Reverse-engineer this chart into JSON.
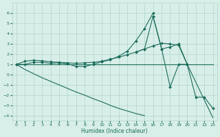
{
  "xlabel": "Humidex (Indice chaleur)",
  "color": "#1a6b5a",
  "bg_color": "#d8eee8",
  "grid_color": "#b0d4ce",
  "ylim": [
    -4.5,
    7.0
  ],
  "xlim": [
    -0.5,
    23.5
  ],
  "yticks": [
    -4,
    -3,
    -2,
    -1,
    0,
    1,
    2,
    3,
    4,
    5,
    6
  ],
  "xticks": [
    0,
    1,
    2,
    3,
    4,
    5,
    6,
    7,
    8,
    9,
    10,
    11,
    12,
    13,
    14,
    15,
    16,
    17,
    18,
    19,
    20,
    21,
    22,
    23
  ],
  "lines": [
    {
      "x": [
        0,
        1,
        2,
        3,
        4,
        5,
        6,
        7,
        8,
        9,
        10,
        11,
        12,
        13,
        14,
        15,
        16,
        17,
        18,
        19,
        20,
        21,
        22,
        23
      ],
      "y": [
        1.0,
        1.0,
        1.0,
        1.0,
        1.0,
        1.0,
        1.0,
        1.0,
        1.0,
        1.0,
        1.0,
        1.0,
        1.0,
        1.0,
        1.0,
        1.0,
        1.0,
        1.0,
        1.0,
        1.0,
        1.0,
        1.0,
        1.0,
        1.0
      ],
      "marker": false
    },
    {
      "x": [
        0,
        1,
        2,
        3,
        4,
        5,
        6,
        7,
        8,
        9,
        10,
        11,
        12,
        13,
        14,
        15,
        16,
        17,
        18,
        19,
        20
      ],
      "y": [
        1.0,
        1.3,
        1.4,
        1.35,
        1.25,
        1.2,
        1.15,
        1.1,
        1.15,
        1.2,
        1.3,
        1.5,
        1.7,
        1.95,
        2.2,
        2.5,
        2.8,
        3.05,
        3.0,
        2.85,
        1.0
      ],
      "marker": true
    },
    {
      "x": [
        0,
        1,
        2,
        3,
        4,
        5,
        6,
        7,
        8,
        9,
        10,
        11,
        12,
        13,
        14,
        15,
        16
      ],
      "y": [
        1.0,
        1.0,
        1.2,
        1.2,
        1.1,
        1.15,
        1.05,
        0.8,
        0.8,
        1.0,
        1.25,
        1.45,
        1.8,
        2.3,
        3.3,
        4.5,
        6.0
      ],
      "marker": true
    },
    {
      "x": [
        14,
        15,
        16,
        17,
        18,
        19,
        20
      ],
      "y": [
        2.2,
        2.5,
        5.7,
        2.5,
        2.7,
        3.0,
        1.0
      ],
      "marker": true
    },
    {
      "x": [
        0,
        1,
        2,
        3,
        4,
        5,
        6,
        7,
        8,
        9,
        10,
        11,
        12,
        13,
        14,
        15,
        16,
        17,
        18,
        19,
        20,
        21,
        22,
        23
      ],
      "y": [
        1.0,
        0.5,
        0.1,
        -0.3,
        -0.65,
        -1.0,
        -1.35,
        -1.7,
        -2.0,
        -2.35,
        -2.65,
        -3.0,
        -3.3,
        -3.55,
        -3.8,
        -4.0,
        null,
        null,
        null,
        null,
        null,
        null,
        null,
        null
      ],
      "marker": false
    },
    {
      "x": [
        16,
        17,
        18,
        19,
        20,
        21,
        22,
        23
      ],
      "y": [
        5.7,
        2.5,
        -1.2,
        1.0,
        1.0,
        -2.2,
        -2.2,
        -3.3
      ],
      "marker": true
    },
    {
      "x": [
        20,
        23
      ],
      "y": [
        1.0,
        -4.2
      ],
      "marker": false
    }
  ]
}
